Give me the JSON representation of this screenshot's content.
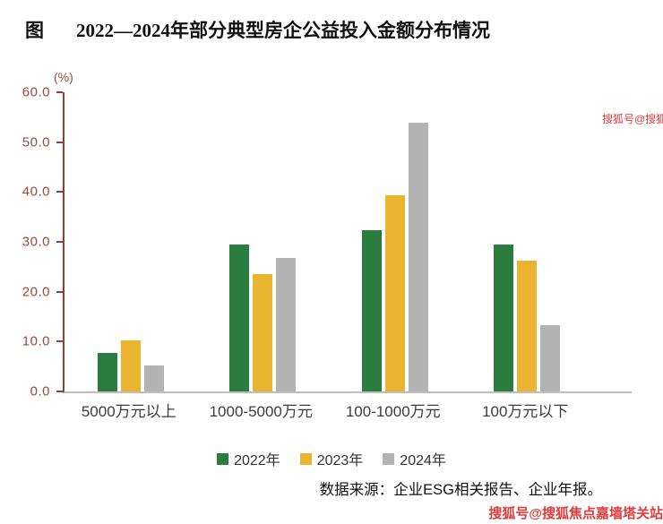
{
  "header": {
    "prefix": "图",
    "title": "2022—2024年部分典型房企公益投入金额分布情况"
  },
  "chart_data": {
    "type": "bar",
    "unit_label": "(%)",
    "categories": [
      "5000万元以上",
      "1000-5000万元",
      "100-1000万元",
      "100万元以下"
    ],
    "series": [
      {
        "name": "2022年",
        "color": "#2a7d3e",
        "values": [
          7.8,
          29.5,
          32.3,
          29.5
        ]
      },
      {
        "name": "2023年",
        "color": "#eab430",
        "values": [
          10.2,
          23.5,
          39.4,
          26.2
        ]
      },
      {
        "name": "2024年",
        "color": "#b3b3b3",
        "values": [
          5.3,
          26.8,
          53.9,
          13.3
        ]
      }
    ],
    "ylim": [
      0,
      60
    ],
    "yticks": [
      "60.0",
      "50.0",
      "40.0",
      "30.0",
      "20.0",
      "10.0",
      "0.0"
    ],
    "grid": false,
    "legend_position": "bottom",
    "axis_color": "#8f3f35",
    "tick_label_color": "#9a4b3e"
  },
  "footer": {
    "source": "数据来源：企业ESG相关报告、企业年报。"
  },
  "watermark": {
    "top": "搜狐号@搜狐焦点嘉墙塔关站",
    "bottom": "搜狐号@搜狐焦点嘉墙塔关站",
    "color": "#e23b3b"
  }
}
